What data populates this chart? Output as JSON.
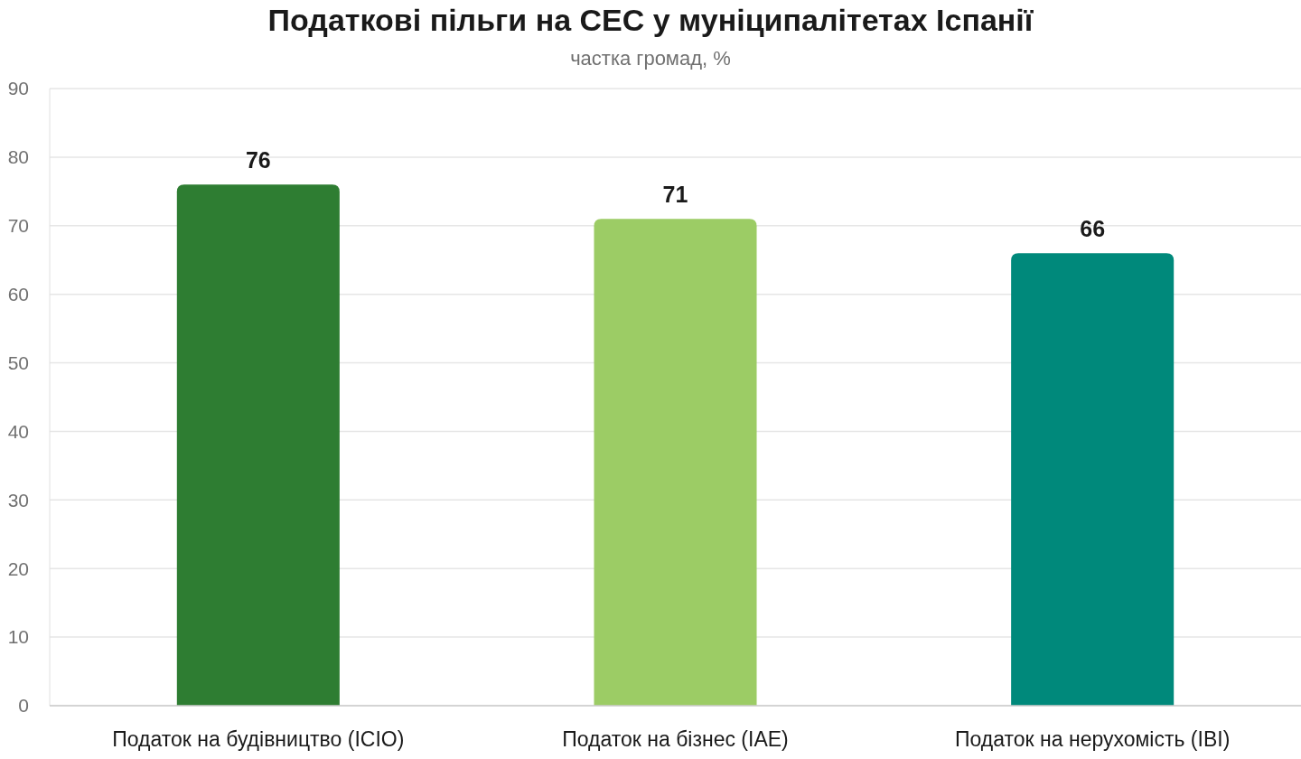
{
  "chart_data": {
    "type": "bar",
    "title": "Податкові пільги на СЕС у муніципалітетах Іспанії",
    "subtitle": "частка громад, %",
    "categories": [
      "Податок на будівництво (ICIO)",
      "Податок на бізнес (IAE)",
      "Податок на нерухомість (IBI)"
    ],
    "values": [
      76,
      71,
      66
    ],
    "colors": [
      "#2e7d32",
      "#9ccc65",
      "#00897b"
    ],
    "ylim": [
      0,
      90
    ],
    "yticks": [
      0,
      10,
      20,
      30,
      40,
      50,
      60,
      70,
      80,
      90
    ],
    "grid": "y",
    "data_labels": true
  }
}
